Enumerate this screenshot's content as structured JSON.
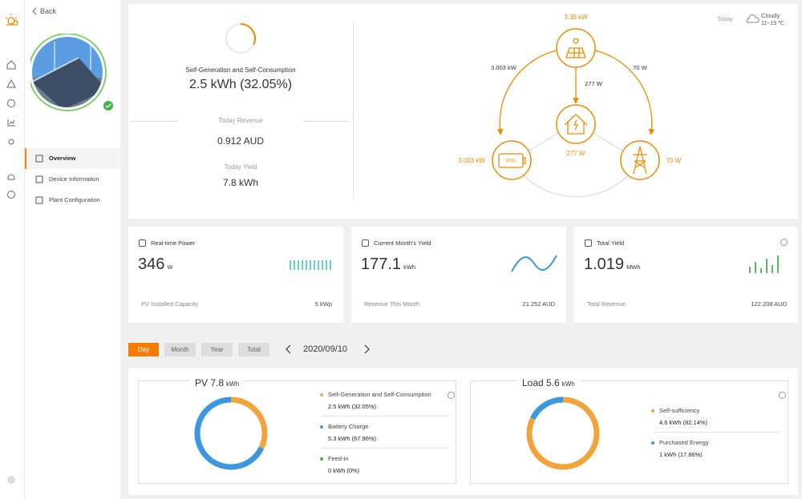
{
  "nav": {
    "back": "Back",
    "items": [
      "Overview",
      "Device Information",
      "Plant Configuration"
    ],
    "active": 0
  },
  "summary": {
    "label": "Self-Generation and Self-Consumption",
    "value": "2.5 kWh (32.05%)",
    "revenue_label": "Today Revenue",
    "revenue": "0.912 AUD",
    "yield_label": "Today Yield",
    "yield": "7.8 kWh"
  },
  "flow": {
    "pv": "3.35 kW",
    "pv_to_battery": "3.003 kW",
    "pv_to_grid": "70 W",
    "pv_to_home": "277 W",
    "home": "277 W",
    "battery": "3.003 kW",
    "battery_soc": "90%",
    "grid": "70 W"
  },
  "weather": {
    "day": "Today",
    "condition": "Cloudy",
    "temp": "11~19 ℃"
  },
  "cards": [
    {
      "title": "Real-time Power",
      "value": "346",
      "unit": "W",
      "footer_label": "PV Installed Capacity",
      "footer_value": "5 kWp"
    },
    {
      "title": "Current Month's Yield",
      "value": "177.1",
      "unit": "kWh",
      "footer_label": "Revenue This Month",
      "footer_value": "21.252 AUD"
    },
    {
      "title": "Total Yield",
      "value": "1.019",
      "unit": "MWh",
      "footer_label": "Total Revenue",
      "footer_value": "122.208 AUD"
    }
  ],
  "period": {
    "tabs": [
      "Day",
      "Month",
      "Year",
      "Total"
    ],
    "active": 0,
    "date": "2020/09/10"
  },
  "breakdown": [
    {
      "title": "PV 7.8",
      "unit": "kWh",
      "items": [
        {
          "label": "Self-Generation and Self-Consumption",
          "value": "2.5 kWh (32.05%)",
          "share": 32.05,
          "color": "#f2a33a"
        },
        {
          "label": "Battery Charge",
          "value": "5.3 kWh (67.96%)",
          "share": 67.96,
          "color": "#3a97e0"
        },
        {
          "label": "Feed-in",
          "value": "0 kWh (0%)",
          "share": 0,
          "color": "#3cb44a"
        }
      ]
    },
    {
      "title": "Load 5.6",
      "unit": "kWh",
      "items": [
        {
          "label": "Self-sufficiency",
          "value": "4.6 kWh (82.14%)",
          "share": 82.14,
          "color": "#f2a33a"
        },
        {
          "label": "Purchased Energy",
          "value": "1 kWh (17.86%)",
          "share": 17.86,
          "color": "#3a97e0"
        }
      ]
    }
  ]
}
